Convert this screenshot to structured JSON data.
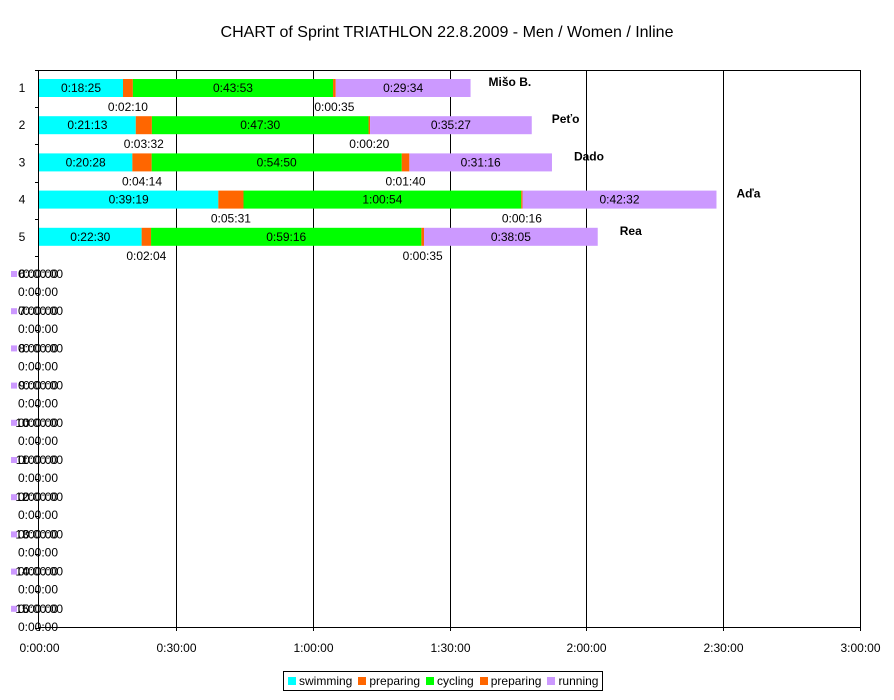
{
  "chart_data": {
    "type": "bar",
    "orientation": "horizontal",
    "stacked": true,
    "title": "CHART of  Sprint TRIATHLON 22.8.2009 - Men / Women / Inline",
    "x_ticks": [
      "0:00:00",
      "0:30:00",
      "1:00:00",
      "1:30:00",
      "2:00:00",
      "2:30:00",
      "3:00:00"
    ],
    "x_range_minutes": [
      0,
      180
    ],
    "gridlines": "vertical",
    "legend_position": "bottom",
    "series_names": [
      "swimming",
      "preparing",
      "cycling",
      "preparing",
      "running"
    ],
    "colors": [
      "#00ffff",
      "#ff6600",
      "#00ff00",
      "#ff6600",
      "#cc99ff"
    ],
    "rows": [
      {
        "label": "1",
        "name": "Mišo B.",
        "segments": [
          "0:18:25",
          "0:02:10",
          "0:43:53",
          "0:00:35",
          "0:29:34"
        ]
      },
      {
        "label": "2",
        "name": "Peťo",
        "segments": [
          "0:21:13",
          "0:03:32",
          "0:47:30",
          "0:00:20",
          "0:35:27"
        ]
      },
      {
        "label": "3",
        "name": "Dado",
        "segments": [
          "0:20:28",
          "0:04:14",
          "0:54:50",
          "0:01:40",
          "0:31:16"
        ]
      },
      {
        "label": "4",
        "name": "Aďa",
        "segments": [
          "0:39:19",
          "0:05:31",
          "1:00:54",
          "0:00:16",
          "0:42:32"
        ]
      },
      {
        "label": "5",
        "name": "Rea",
        "segments": [
          "0:22:30",
          "0:02:04",
          "0:59:16",
          "0:00:35",
          "0:38:05"
        ]
      }
    ],
    "empty_rows": {
      "labels": [
        "6",
        "7",
        "8",
        "9",
        "10",
        "11",
        "12",
        "13",
        "14",
        "15"
      ],
      "segment_value": "0:00:00"
    }
  }
}
